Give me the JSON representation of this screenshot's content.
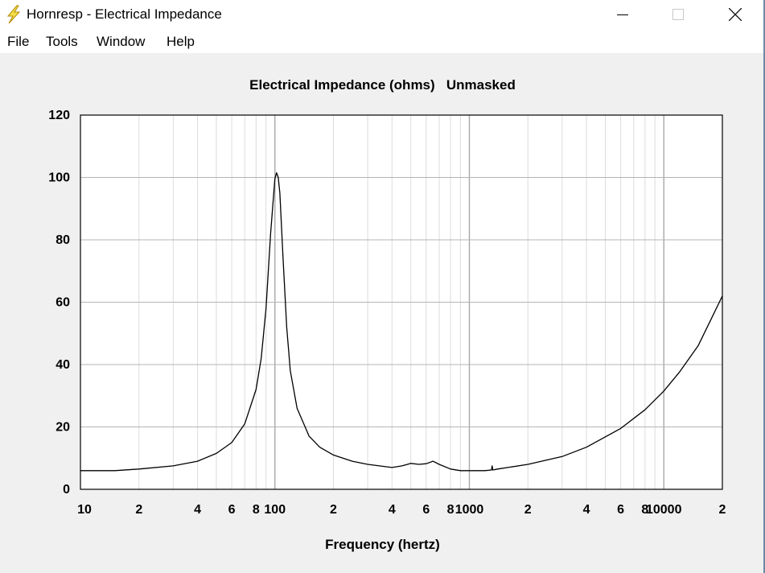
{
  "window": {
    "title": "Hornresp - Electrical Impedance",
    "app_icon": "lightning-bolt-icon",
    "controls": [
      "minimize-icon",
      "maximize-icon",
      "close-icon"
    ]
  },
  "menu": {
    "items": [
      "File",
      "Tools",
      "Window",
      "Help"
    ]
  },
  "chart_data": {
    "type": "line",
    "title": "Electrical Impedance (ohms)   Unmasked",
    "xlabel": "Frequency (hertz)",
    "ylabel": "",
    "x_scale": "log",
    "xlim": [
      10,
      20000
    ],
    "ylim": [
      0,
      120
    ],
    "yticks": [
      0,
      20,
      40,
      60,
      80,
      100,
      120
    ],
    "xtick_labels": [
      {
        "value": 10,
        "label": "10"
      },
      {
        "value": 20,
        "label": "2"
      },
      {
        "value": 40,
        "label": "4"
      },
      {
        "value": 60,
        "label": "6"
      },
      {
        "value": 80,
        "label": "8"
      },
      {
        "value": 100,
        "label": "100"
      },
      {
        "value": 200,
        "label": "2"
      },
      {
        "value": 400,
        "label": "4"
      },
      {
        "value": 600,
        "label": "6"
      },
      {
        "value": 800,
        "label": "8"
      },
      {
        "value": 1000,
        "label": "1000"
      },
      {
        "value": 2000,
        "label": "2"
      },
      {
        "value": 4000,
        "label": "4"
      },
      {
        "value": 6000,
        "label": "6"
      },
      {
        "value": 8000,
        "label": "8"
      },
      {
        "value": 10000,
        "label": "10000"
      },
      {
        "value": 20000,
        "label": "2"
      }
    ],
    "grid": true,
    "series": [
      {
        "color": "#000000",
        "x": [
          10,
          15,
          20,
          30,
          40,
          50,
          60,
          70,
          80,
          85,
          90,
          95,
          100,
          102,
          104,
          106,
          110,
          115,
          120,
          130,
          150,
          170,
          200,
          250,
          300,
          400,
          450,
          500,
          550,
          600,
          650,
          700,
          800,
          900,
          1000,
          1200,
          1300,
          1310,
          1320,
          1400,
          2000,
          3000,
          4000,
          6000,
          8000,
          10000,
          12000,
          15000,
          20000
        ],
        "y": [
          6,
          6,
          6.5,
          7.5,
          9,
          11.5,
          15,
          21,
          32,
          42,
          58,
          82,
          99.5,
          101.5,
          100,
          95,
          75,
          52,
          38,
          26,
          17,
          13.5,
          11,
          9,
          8,
          7,
          7.5,
          8.3,
          8,
          8.2,
          9,
          8,
          6.5,
          6,
          6,
          6,
          6.2,
          7.5,
          6.2,
          6.5,
          8,
          10.5,
          13.5,
          19.5,
          25.5,
          31.5,
          37.5,
          46,
          62
        ]
      }
    ]
  }
}
